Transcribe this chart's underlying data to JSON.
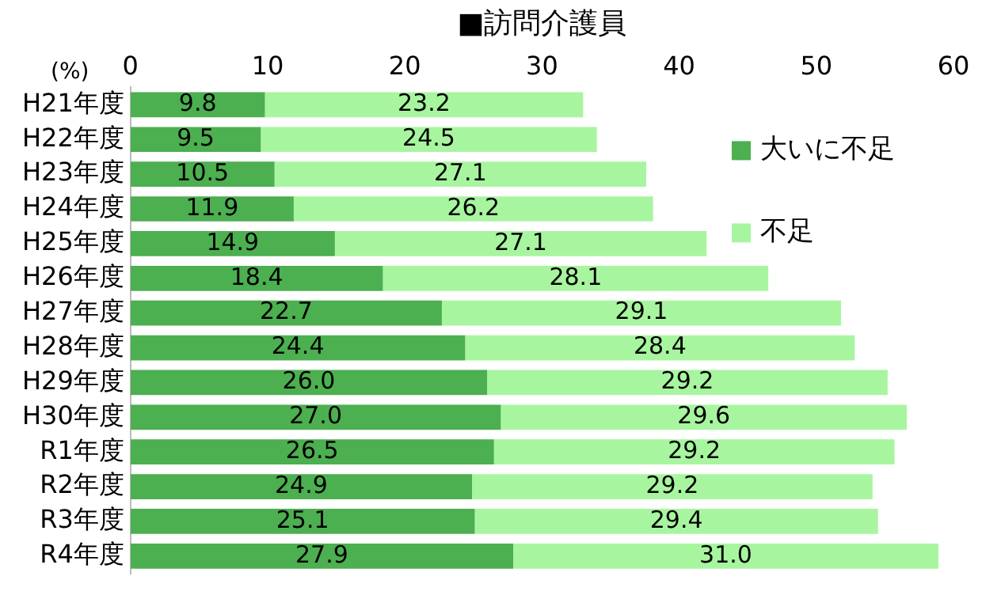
{
  "chart_data": {
    "type": "bar",
    "title": "■訪問介護員",
    "xlabel": "(%)",
    "orientation": "horizontal",
    "stacked": true,
    "legend": "top right",
    "grid": false,
    "categories": [
      "H21年度",
      "H22年度",
      "H23年度",
      "H24年度",
      "H25年度",
      "H26年度",
      "H27年度",
      "H28年度",
      "H29年度",
      "H30年度",
      "R1年度",
      "R2年度",
      "R3年度",
      "R4年度"
    ],
    "xlim": [
      0,
      60
    ],
    "xticks": [
      0,
      10,
      20,
      30,
      40,
      50,
      60
    ],
    "series": [
      {
        "name": "大いに不足",
        "color": "#4caf50",
        "values": [
          9.8,
          9.5,
          10.5,
          11.9,
          14.9,
          18.4,
          22.7,
          24.4,
          26.0,
          27.0,
          26.5,
          24.9,
          25.1,
          27.9
        ],
        "value_labels": [
          "9.8",
          "9.5",
          "10.5",
          "11.9",
          "14.9",
          "18.4",
          "22.7",
          "24.4",
          "26.0",
          "27.0",
          "26.5",
          "24.9",
          "25.1",
          "27.9"
        ]
      },
      {
        "name": "不足",
        "color": "#a8f5a0",
        "values": [
          23.2,
          24.5,
          27.1,
          26.2,
          27.1,
          28.1,
          29.1,
          28.4,
          29.2,
          29.6,
          29.2,
          29.2,
          29.4,
          31.0
        ],
        "value_labels": [
          "23.2",
          "24.5",
          "27.1",
          "26.2",
          "27.1",
          "28.1",
          "29.1",
          "28.4",
          "29.2",
          "29.6",
          "29.2",
          "29.2",
          "29.4",
          "31.0"
        ]
      }
    ]
  }
}
